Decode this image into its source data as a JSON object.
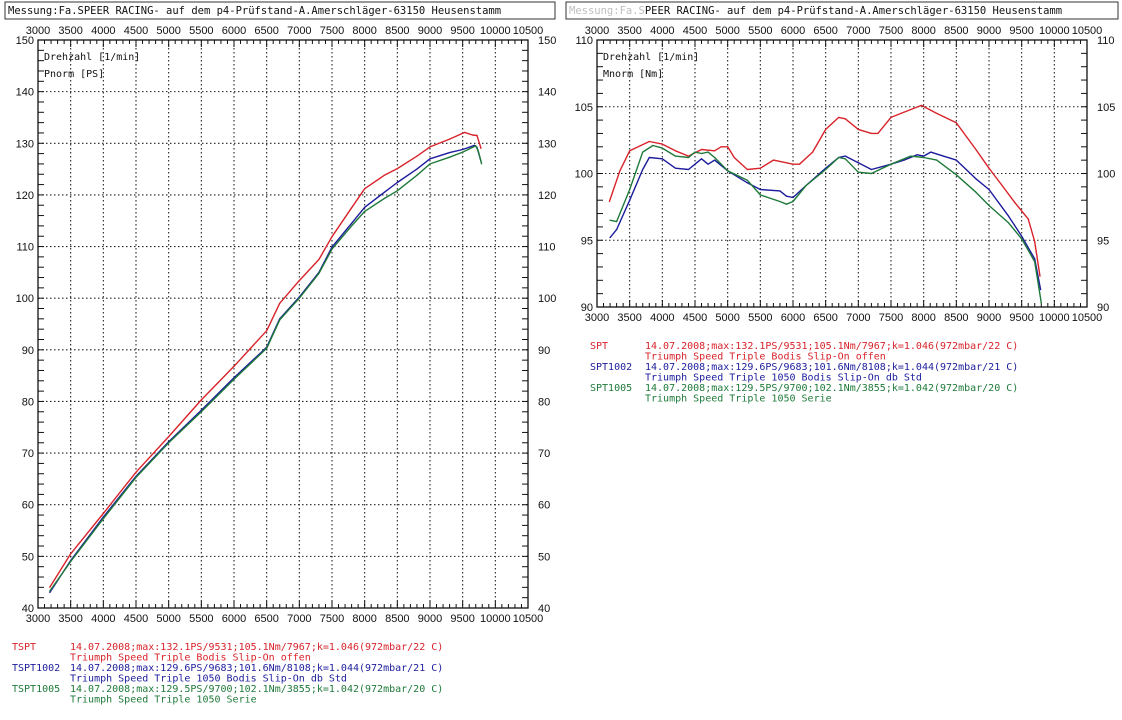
{
  "colors": {
    "red": "#d8232a",
    "blue": "#1c1c9c",
    "green": "#1f7a3a",
    "grid": "#222222"
  },
  "chart_data": [
    {
      "type": "line",
      "title": "Messung:Fa.SPEER RACING- auf dem p4-Prüfstand-A.Amerschläger-63150 Heusenstamm",
      "xlabel": "Drehzahl [1/min]",
      "ylabel": "Pnorm [PS]",
      "xlim": [
        3000,
        10500
      ],
      "ylim": [
        40,
        150
      ],
      "x_ticks": [
        "3000",
        "3500",
        "4000",
        "4500",
        "5000",
        "5500",
        "6000",
        "6500",
        "7000",
        "7500",
        "8000",
        "8500",
        "9000",
        "9500",
        "10000",
        "10500"
      ],
      "y_ticks": [
        "40",
        "50",
        "60",
        "70",
        "80",
        "90",
        "100",
        "110",
        "120",
        "130",
        "140",
        "150"
      ],
      "grid": true,
      "legend_position": "bottom",
      "legend": [
        {
          "name": "TSPT",
          "info": "14.07.2008;max:132.1PS/9531;105.1Nm/7967;k=1.046(972mbar/22 C)",
          "desc": "Triumph Speed Triple Bodis Slip-On offen",
          "color": "red"
        },
        {
          "name": "TSPT1002",
          "info": "14.07.2008;max:129.6PS/9683;101.6Nm/8108;k=1.044(972mbar/21 C)",
          "desc": "Triumph Speed Triple 1050 Bodis Slip-On db Std",
          "color": "blue"
        },
        {
          "name": "TSPT1005",
          "info": "14.07.2008;max:129.5PS/9700;102.1Nm/3855;k=1.042(972mbar/20 C)",
          "desc": "Triumph Speed Triple 1050 Serie",
          "color": "green"
        }
      ],
      "series": [
        {
          "name": "TSPT",
          "color": "red",
          "points": [
            [
              3180,
              44
            ],
            [
              3500,
              50.5
            ],
            [
              4000,
              58.3
            ],
            [
              4500,
              66.3
            ],
            [
              5000,
              73.2
            ],
            [
              5500,
              80.3
            ],
            [
              6000,
              86.8
            ],
            [
              6500,
              93.7
            ],
            [
              6700,
              99
            ],
            [
              7000,
              103.4
            ],
            [
              7300,
              107.5
            ],
            [
              7500,
              111.9
            ],
            [
              7800,
              117.5
            ],
            [
              8000,
              121.2
            ],
            [
              8300,
              123.8
            ],
            [
              8500,
              125.1
            ],
            [
              8800,
              127.5
            ],
            [
              9000,
              129.3
            ],
            [
              9300,
              130.8
            ],
            [
              9531,
              132.1
            ],
            [
              9650,
              131.6
            ],
            [
              9720,
              131.5
            ],
            [
              9780,
              129
            ]
          ]
        },
        {
          "name": "TSPT1002",
          "color": "blue",
          "points": [
            [
              3180,
              43
            ],
            [
              3500,
              49.2
            ],
            [
              4000,
              57.6
            ],
            [
              4500,
              65.5
            ],
            [
              5000,
              72.2
            ],
            [
              5500,
              78.3
            ],
            [
              6000,
              84.6
            ],
            [
              6500,
              90.5
            ],
            [
              6700,
              96
            ],
            [
              7000,
              100.2
            ],
            [
              7300,
              105
            ],
            [
              7500,
              109.9
            ],
            [
              7800,
              114.5
            ],
            [
              8000,
              117.6
            ],
            [
              8300,
              120.5
            ],
            [
              8500,
              122.4
            ],
            [
              8800,
              125
            ],
            [
              9000,
              127
            ],
            [
              9300,
              128.2
            ],
            [
              9500,
              128.8
            ],
            [
              9683,
              129.6
            ],
            [
              9720,
              129.2
            ],
            [
              9780,
              126.5
            ]
          ]
        },
        {
          "name": "TSPT1005",
          "color": "green",
          "points": [
            [
              3180,
              43.3
            ],
            [
              3500,
              49
            ],
            [
              4000,
              57.3
            ],
            [
              4500,
              65.3
            ],
            [
              5000,
              72
            ],
            [
              5500,
              78
            ],
            [
              6000,
              84.3
            ],
            [
              6500,
              90.3
            ],
            [
              6700,
              95.8
            ],
            [
              7000,
              100
            ],
            [
              7300,
              104.8
            ],
            [
              7500,
              109.5
            ],
            [
              7800,
              114
            ],
            [
              8000,
              116.8
            ],
            [
              8300,
              119.3
            ],
            [
              8500,
              120.8
            ],
            [
              8800,
              123.8
            ],
            [
              9000,
              126
            ],
            [
              9300,
              127.3
            ],
            [
              9500,
              128.3
            ],
            [
              9700,
              129.5
            ],
            [
              9740,
              128.5
            ],
            [
              9790,
              126
            ]
          ]
        }
      ]
    },
    {
      "type": "line",
      "title": "Messung:Fa.SPEER RACING- auf dem p4-Prüfstand-A.Amerschläger-63150 Heusenstamm",
      "xlabel": "Drehzahl [1/min]",
      "ylabel": "Mnorm [Nm]",
      "xlim": [
        3000,
        10500
      ],
      "ylim": [
        90,
        110
      ],
      "x_ticks": [
        "3000",
        "3500",
        "4000",
        "4500",
        "5000",
        "5500",
        "6000",
        "6500",
        "7000",
        "7500",
        "8000",
        "8500",
        "9000",
        "9500",
        "10000",
        "10500"
      ],
      "y_ticks": [
        "90",
        "95",
        "100",
        "105",
        "110"
      ],
      "grid": true,
      "legend_position": "bottom",
      "legend": [
        {
          "name": "SPT",
          "info": "14.07.2008;max:132.1PS/9531;105.1Nm/7967;k=1.046(972mbar/22 C)",
          "desc": "Triumph Speed Triple Bodis Slip-On offen",
          "color": "red"
        },
        {
          "name": "SPT1002",
          "info": "14.07.2008;max:129.6PS/9683;101.6Nm/8108;k=1.044(972mbar/21 C)",
          "desc": "Triumph Speed Triple 1050 Bodis Slip-On db Std",
          "color": "blue"
        },
        {
          "name": "SPT1005",
          "info": "14.07.2008;max:129.5PS/9700;102.1Nm/3855;k=1.042(972mbar/20 C)",
          "desc": "Triumph Speed Triple 1050 Serie",
          "color": "green"
        }
      ],
      "series": [
        {
          "name": "SPT",
          "color": "red",
          "points": [
            [
              3190,
              97.9
            ],
            [
              3350,
              100.2
            ],
            [
              3500,
              101.7
            ],
            [
              3800,
              102.4
            ],
            [
              4000,
              102.2
            ],
            [
              4200,
              101.7
            ],
            [
              4400,
              101.3
            ],
            [
              4600,
              101.8
            ],
            [
              4800,
              101.7
            ],
            [
              4900,
              102
            ],
            [
              5000,
              102
            ],
            [
              5100,
              101.2
            ],
            [
              5300,
              100.3
            ],
            [
              5500,
              100.4
            ],
            [
              5700,
              101
            ],
            [
              6000,
              100.7
            ],
            [
              6100,
              100.7
            ],
            [
              6300,
              101.6
            ],
            [
              6500,
              103.3
            ],
            [
              6700,
              104.2
            ],
            [
              6800,
              104.1
            ],
            [
              7000,
              103.3
            ],
            [
              7200,
              103
            ],
            [
              7300,
              103
            ],
            [
              7500,
              104.2
            ],
            [
              7700,
              104.6
            ],
            [
              7967,
              105.1
            ],
            [
              8200,
              104.5
            ],
            [
              8500,
              103.8
            ],
            [
              8800,
              101.8
            ],
            [
              9000,
              100.4
            ],
            [
              9200,
              99.1
            ],
            [
              9400,
              97.8
            ],
            [
              9600,
              96.6
            ],
            [
              9700,
              94.9
            ],
            [
              9780,
              92.3
            ]
          ]
        },
        {
          "name": "SPT1002",
          "color": "blue",
          "points": [
            [
              3200,
              95.2
            ],
            [
              3300,
              95.8
            ],
            [
              3500,
              98
            ],
            [
              3700,
              100.3
            ],
            [
              3800,
              101.2
            ],
            [
              4000,
              101.1
            ],
            [
              4200,
              100.4
            ],
            [
              4400,
              100.3
            ],
            [
              4500,
              100.7
            ],
            [
              4600,
              101.1
            ],
            [
              4700,
              100.7
            ],
            [
              4800,
              101
            ],
            [
              5000,
              100.2
            ],
            [
              5300,
              99.3
            ],
            [
              5500,
              98.8
            ],
            [
              5800,
              98.7
            ],
            [
              5900,
              98.3
            ],
            [
              6000,
              98.2
            ],
            [
              6200,
              99.1
            ],
            [
              6500,
              100.4
            ],
            [
              6700,
              101.2
            ],
            [
              6800,
              101.3
            ],
            [
              7000,
              100.8
            ],
            [
              7200,
              100.3
            ],
            [
              7500,
              100.7
            ],
            [
              7700,
              101
            ],
            [
              7900,
              101.4
            ],
            [
              8000,
              101.3
            ],
            [
              8108,
              101.6
            ],
            [
              8300,
              101.3
            ],
            [
              8500,
              101
            ],
            [
              8800,
              99.6
            ],
            [
              9000,
              98.8
            ],
            [
              9300,
              96.8
            ],
            [
              9500,
              95.3
            ],
            [
              9700,
              93.6
            ],
            [
              9790,
              91.3
            ]
          ]
        },
        {
          "name": "SPT1005",
          "color": "green",
          "points": [
            [
              3200,
              96.5
            ],
            [
              3300,
              96.4
            ],
            [
              3500,
              98.8
            ],
            [
              3700,
              101.6
            ],
            [
              3855,
              102.1
            ],
            [
              4000,
              101.9
            ],
            [
              4200,
              101.3
            ],
            [
              4400,
              101.2
            ],
            [
              4500,
              101.6
            ],
            [
              4600,
              101.5
            ],
            [
              4700,
              101.6
            ],
            [
              4800,
              101.2
            ],
            [
              5000,
              100.2
            ],
            [
              5300,
              99.5
            ],
            [
              5500,
              98.4
            ],
            [
              5800,
              97.9
            ],
            [
              5900,
              97.7
            ],
            [
              6000,
              97.9
            ],
            [
              6200,
              99.1
            ],
            [
              6500,
              100.3
            ],
            [
              6700,
              101.2
            ],
            [
              6800,
              101.1
            ],
            [
              7000,
              100.1
            ],
            [
              7200,
              100
            ],
            [
              7500,
              100.7
            ],
            [
              7800,
              101.3
            ],
            [
              8000,
              101.2
            ],
            [
              8200,
              101
            ],
            [
              8500,
              99.9
            ],
            [
              8800,
              98.6
            ],
            [
              9000,
              97.6
            ],
            [
              9300,
              96.3
            ],
            [
              9500,
              95.1
            ],
            [
              9700,
              93.4
            ],
            [
              9800,
              90.3
            ]
          ]
        }
      ]
    }
  ]
}
